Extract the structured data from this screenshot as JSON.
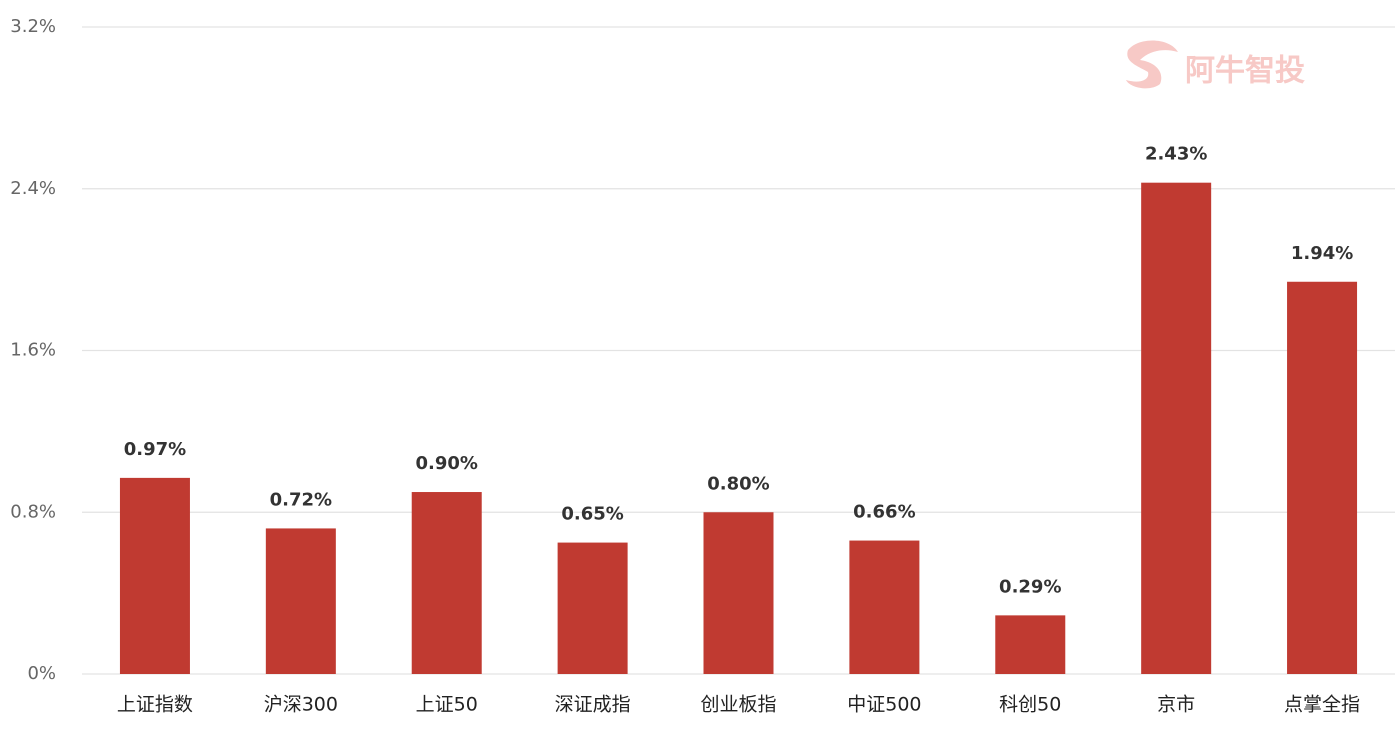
{
  "chart_data": {
    "type": "bar",
    "watermark": "阿牛智投",
    "categories": [
      "上证指数",
      "沪深300",
      "上证50",
      "深证成指",
      "创业板指",
      "中证500",
      "科创50",
      "京市",
      "点掌全指"
    ],
    "values": [
      0.97,
      0.72,
      0.9,
      0.65,
      0.8,
      0.66,
      0.29,
      2.43,
      1.94
    ],
    "value_labels": [
      "0.97%",
      "0.72%",
      "0.90%",
      "0.65%",
      "0.80%",
      "0.66%",
      "0.29%",
      "2.43%",
      "1.94%"
    ],
    "color": "#c03a31",
    "ylim": [
      0,
      3.2
    ],
    "yticks": [
      {
        "value": 0,
        "label": "0%"
      },
      {
        "value": 0.8,
        "label": "0.8%"
      },
      {
        "value": 1.6,
        "label": "1.6%"
      },
      {
        "value": 2.4,
        "label": "2.4%"
      },
      {
        "value": 3.2,
        "label": "3.2%"
      }
    ],
    "grid": true
  }
}
